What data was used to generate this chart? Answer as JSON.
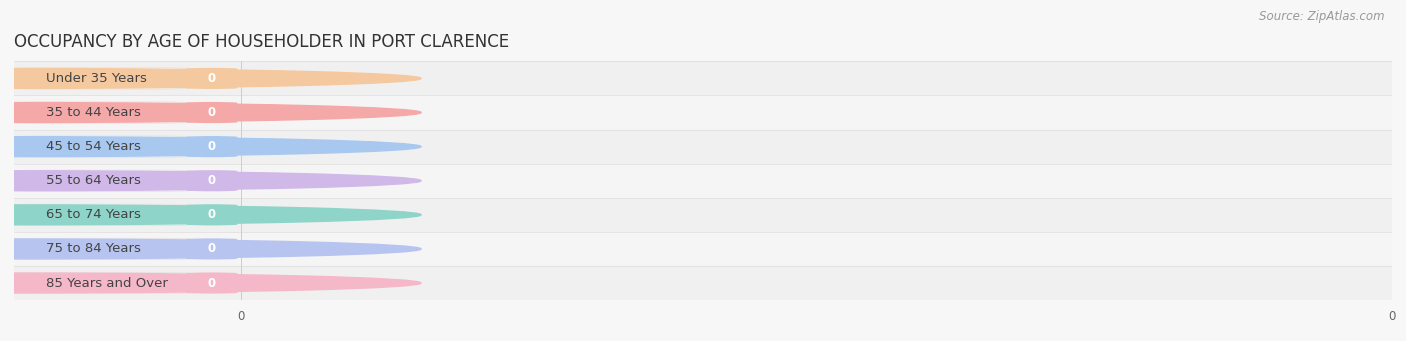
{
  "title": "OCCUPANCY BY AGE OF HOUSEHOLDER IN PORT CLARENCE",
  "source": "Source: ZipAtlas.com",
  "categories": [
    "Under 35 Years",
    "35 to 44 Years",
    "45 to 54 Years",
    "55 to 64 Years",
    "65 to 74 Years",
    "75 to 84 Years",
    "85 Years and Over"
  ],
  "values": [
    0,
    0,
    0,
    0,
    0,
    0,
    0
  ],
  "bar_colors": [
    "#f5c9a0",
    "#f5a8a8",
    "#a8c8f0",
    "#d0b8e8",
    "#8ed4c8",
    "#b8c4f0",
    "#f5b8c8"
  ],
  "background_color": "#f7f7f7",
  "title_fontsize": 12,
  "source_fontsize": 8.5,
  "label_fontsize": 9.5,
  "value_fontsize": 8.5
}
